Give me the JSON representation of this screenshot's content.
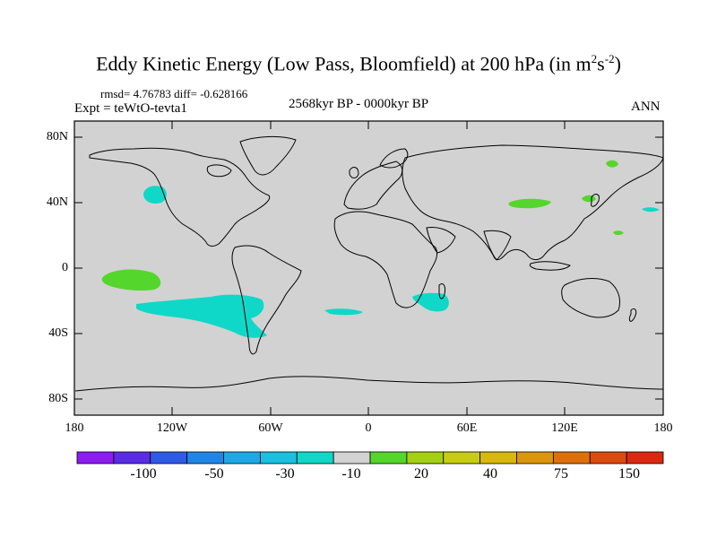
{
  "title": {
    "main": "Eddy Kinetic Energy (Low Pass, Bloomfield) at 200 hPa (in m",
    "sup1": "2",
    "mid": "s",
    "sup2": "-2",
    "close": ")"
  },
  "header": {
    "rmsd": "rmsd= 4.76783 diff= -0.628166",
    "expt": "Expt = teWtO-tevta1",
    "period": "2568kyr BP - 0000kyr BP",
    "season": "ANN"
  },
  "axes": {
    "y_ticks": [
      "80N",
      "40N",
      "0",
      "40S",
      "80S"
    ],
    "x_ticks": [
      "180",
      "120W",
      "60W",
      "0",
      "60E",
      "120E",
      "180"
    ]
  },
  "colorbar": {
    "colors": [
      "#8c1cf0",
      "#5a2ce6",
      "#2f5ae8",
      "#1f86e6",
      "#1fa8e8",
      "#19c0e0",
      "#10d8c8",
      "#d2d2d2",
      "#54d62c",
      "#a4d014",
      "#c8cc10",
      "#d8b80c",
      "#dc960c",
      "#de700c",
      "#dc4a10",
      "#dc2810"
    ],
    "labels": [
      "-100",
      "-50",
      "-30",
      "-10",
      "20",
      "40",
      "75",
      "150"
    ]
  },
  "map": {
    "land_fill": "#d2d2d2",
    "coast_color": "#000000",
    "negative_color": "#10d8c8",
    "positive_color": "#54d62c"
  }
}
